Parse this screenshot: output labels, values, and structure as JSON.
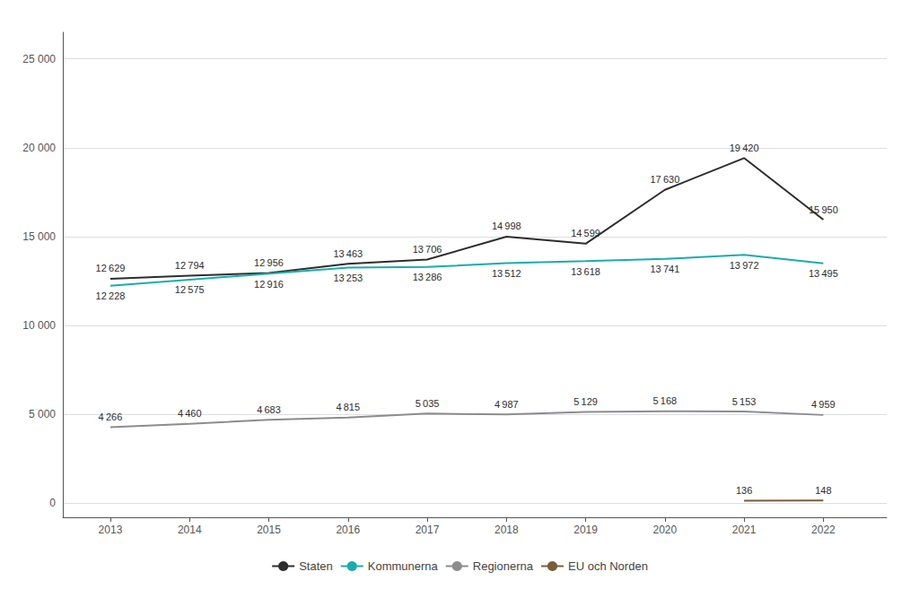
{
  "chart_data": {
    "type": "line",
    "x": [
      2013,
      2014,
      2015,
      2016,
      2017,
      2018,
      2019,
      2020,
      2021,
      2022
    ],
    "xlim": [
      2012.4,
      2022.8
    ],
    "xticks": [
      2013,
      2014,
      2015,
      2016,
      2017,
      2018,
      2019,
      2020,
      2021,
      2022
    ],
    "ylim": [
      -800,
      26500
    ],
    "yticks": [
      0,
      {
        "value": 5000,
        "label": "5 000"
      },
      {
        "value": 10000,
        "label": "10 000"
      },
      {
        "value": 15000,
        "label": "15 000"
      },
      {
        "value": 20000,
        "label": "20 000"
      },
      {
        "value": 25000,
        "label": "25 000"
      }
    ],
    "grid": true,
    "legend": "bottom",
    "data_labels": true,
    "series": [
      {
        "name": "Staten",
        "color": "#2d2d2d",
        "values": [
          12629,
          12794,
          12956,
          13463,
          13706,
          14998,
          14599,
          17630,
          19420,
          15950
        ],
        "value_labels": [
          "12 629",
          "12 794",
          "12 956",
          "13 463",
          "13 706",
          "14 998",
          "14 599",
          "17 630",
          "19 420",
          "15 950"
        ]
      },
      {
        "name": "Kommunerna",
        "color": "#1aacac",
        "values": [
          12228,
          12575,
          12916,
          13253,
          13286,
          13512,
          13618,
          13741,
          13972,
          13495
        ],
        "value_labels": [
          "12 228",
          "12 575",
          "12 916",
          "13 253",
          "13 286",
          "13 512",
          "13 618",
          "13 741",
          "13 972",
          "13 495"
        ]
      },
      {
        "name": "Regionerna",
        "color": "#8c8c8c",
        "values": [
          4266,
          4460,
          4683,
          4815,
          5035,
          4987,
          5129,
          5168,
          5153,
          4959
        ],
        "value_labels": [
          "4 266",
          "4 460",
          "4 683",
          "4 815",
          "5 035",
          "4 987",
          "5 129",
          "5 168",
          "5 153",
          "4 959"
        ]
      },
      {
        "name": "EU och Norden",
        "color": "#7a5c3c",
        "x": [
          2021,
          2022
        ],
        "values": [
          136,
          148
        ]
      }
    ]
  }
}
